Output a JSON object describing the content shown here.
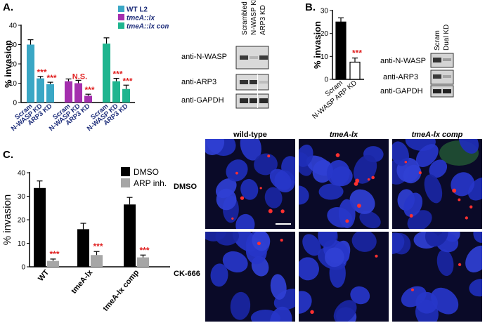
{
  "panels": {
    "a": "A.",
    "b": "B.",
    "c": "C."
  },
  "chart_data": [
    {
      "type": "bar",
      "title": "",
      "ylabel": "% invasion",
      "ylim": [
        0,
        40
      ],
      "yticks": [
        0,
        10,
        20,
        30,
        40
      ],
      "categories": [
        "Scram",
        "N-WASP KD",
        "ARP3 KD"
      ],
      "series": [
        {
          "name": "WT L2",
          "color": "#3aa7c5",
          "values": [
            30,
            12.5,
            9.5
          ],
          "errors": [
            2.5,
            1,
            1
          ]
        },
        {
          "name": "tmeA::lx",
          "color": "#a42fae",
          "values": [
            11,
            10,
            3.5
          ],
          "errors": [
            1.2,
            1.5,
            0.8
          ]
        },
        {
          "name": "tmeA::lx comp",
          "color": "#1fb58f",
          "values": [
            30.5,
            11,
            7
          ],
          "errors": [
            3,
            1.5,
            2
          ]
        }
      ],
      "annotations": [
        {
          "series": 0,
          "index": 1,
          "text": "***"
        },
        {
          "series": 0,
          "index": 2,
          "text": "***"
        },
        {
          "series": 1,
          "index": 1,
          "text": "N.S."
        },
        {
          "series": 1,
          "index": 2,
          "text": "***"
        },
        {
          "series": 2,
          "index": 1,
          "text": "***"
        },
        {
          "series": 2,
          "index": 2,
          "text": "***"
        }
      ]
    },
    {
      "type": "bar",
      "title": "",
      "ylabel": "% invasion",
      "ylim": [
        0,
        30
      ],
      "yticks": [
        0,
        10,
        20,
        30
      ],
      "categories": [
        "Scram",
        "N-WASP ARP KD"
      ],
      "series": [
        {
          "name": "",
          "values": [
            25,
            7.5
          ],
          "errors": [
            1.8,
            1.8
          ],
          "fills": [
            "#000000",
            "#ffffff"
          ]
        }
      ],
      "annotations": [
        {
          "index": 1,
          "text": "***"
        }
      ]
    },
    {
      "type": "bar",
      "title": "",
      "ylabel": "% invasion",
      "ylim": [
        0,
        40
      ],
      "yticks": [
        0,
        10,
        20,
        30,
        40
      ],
      "categories": [
        "WT",
        "tmeA-lx",
        "tmeA-lx comp"
      ],
      "series": [
        {
          "name": "DMSO",
          "color": "#000000",
          "values": [
            33.5,
            16,
            26.5
          ],
          "errors": [
            3,
            2.5,
            3
          ]
        },
        {
          "name": "ARP inh.",
          "color": "#a6a6a6",
          "values": [
            2.5,
            5,
            4
          ],
          "errors": [
            0.8,
            1.5,
            1
          ]
        }
      ],
      "annotations": [
        {
          "index": 0,
          "text": "***"
        },
        {
          "index": 1,
          "text": "***"
        },
        {
          "index": 2,
          "text": "***"
        }
      ]
    }
  ],
  "blot_a": {
    "lanes": [
      "Scrambled",
      "N-WASP KD",
      "ARP3 KD"
    ],
    "rows": [
      "anti-N-WASP",
      "anti-ARP3",
      "anti-GAPDH"
    ]
  },
  "blot_b": {
    "lanes": [
      "Scram",
      "Dual KD"
    ],
    "rows": [
      "anti-N-WASP",
      "anti-ARP3",
      "anti-GAPDH"
    ]
  },
  "micrographs": {
    "columns": [
      "wild-type",
      "tmeA-lx",
      "tmeA-lx comp"
    ],
    "rows": [
      "DMSO",
      "CK-666"
    ]
  }
}
